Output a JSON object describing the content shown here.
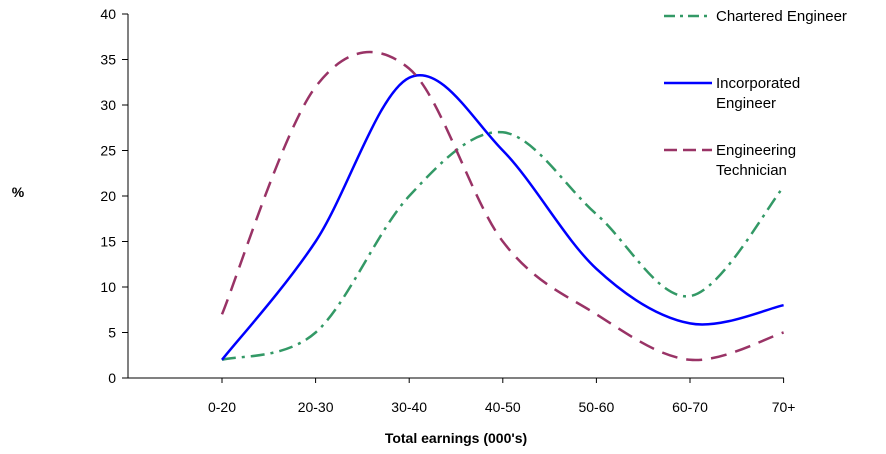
{
  "chart_data": {
    "type": "line",
    "title": "",
    "xlabel": "Total earnings (000's)",
    "ylabel": "%",
    "categories": [
      "0-20",
      "20-30",
      "30-40",
      "40-50",
      "50-60",
      "60-70",
      "70+"
    ],
    "ylim": [
      0,
      40
    ],
    "yticks": [
      0,
      5,
      10,
      15,
      20,
      25,
      30,
      35,
      40
    ],
    "grid": false,
    "legend_position": "right",
    "series": [
      {
        "name": "Chartered Engineer",
        "values": [
          2,
          5,
          20,
          27,
          18,
          9,
          21
        ],
        "color": "#339966",
        "dash": "dash-dot"
      },
      {
        "name": "Incorporated Engineer",
        "values": [
          2,
          15,
          33,
          25,
          12,
          6,
          8
        ],
        "color": "#0000ff",
        "dash": "solid"
      },
      {
        "name": "Engineering Technician",
        "values": [
          7,
          32,
          34,
          15,
          7,
          2,
          5
        ],
        "color": "#993366",
        "dash": "dash"
      }
    ]
  }
}
